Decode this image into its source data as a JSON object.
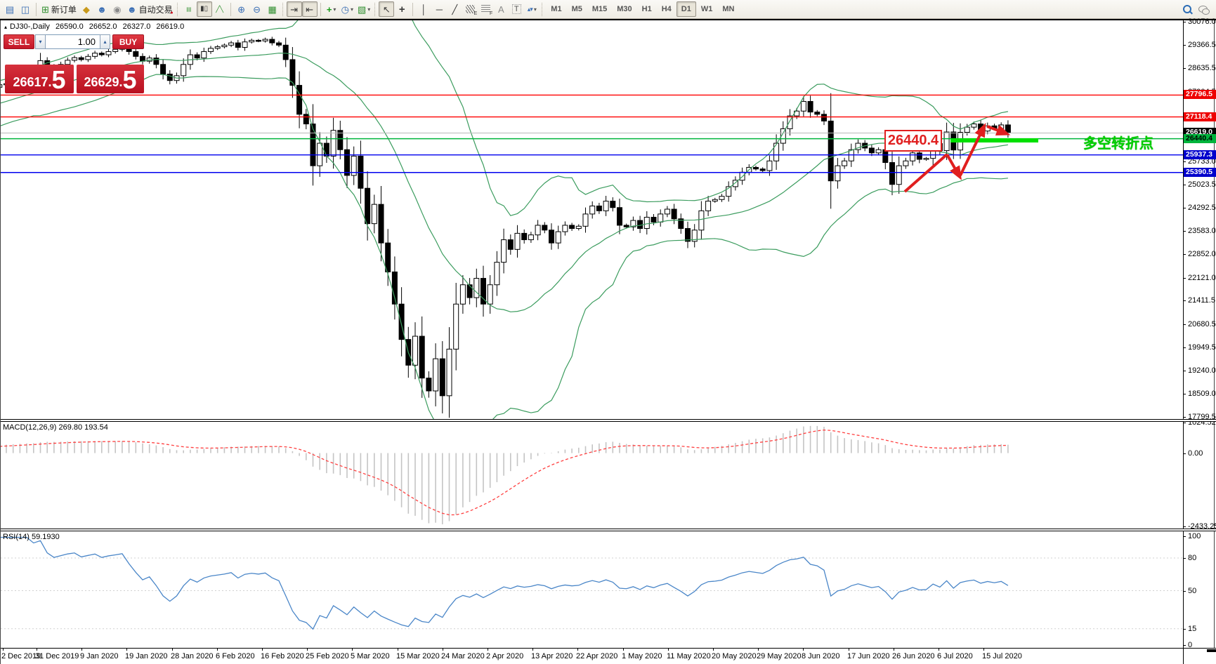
{
  "colors": {
    "up_candle": "#ffffff",
    "down_candle": "#000000",
    "bollinger": "#3b9c5e",
    "macd_hist": "#c4c4c4",
    "macd_signal": "#ff4040",
    "rsi_line": "#4a86c8",
    "level_red": "#ff0000",
    "level_blue": "#0000ee",
    "level_green": "#00b43c",
    "current_price_line": "#b8b8b8",
    "accent_red": "#d01f30",
    "annotation_green": "#00e000"
  },
  "icons": {
    "chart-window": "▤",
    "strategy-tester": "◫",
    "new-order": "⊞",
    "styler": "◆",
    "vps": "☻",
    "news": "◉",
    "autotrading": "☻",
    "autotrading-badge": "●",
    "bar-chart": "≡",
    "candles": "▮▯",
    "line-chart": "╱╲",
    "zoom-in": "⊕",
    "zoom-out": "⊖",
    "tile-windows": "▦",
    "auto-scroll": "⇥",
    "chart-shift": "⇤",
    "indicators": "+",
    "periods": "◷",
    "templates": "▧",
    "cursor": "↖",
    "crosshair": "+",
    "vline": "│",
    "hline": "─",
    "trendline": "╱",
    "channel": "╱╱",
    "text": "A",
    "label": "T",
    "arrows": "▴▾",
    "caret": "▾",
    "caret-down": "▾",
    "caret-up": "▴",
    "tri-up": "▴"
  },
  "toolbar": {
    "new_order_label": "新订单",
    "autotrading_label": "自动交易",
    "timeframes": [
      "M1",
      "M5",
      "M15",
      "M30",
      "H1",
      "H4",
      "D1",
      "W1",
      "MN"
    ],
    "active_timeframe": "D1"
  },
  "title": {
    "symbol": "DJ30-,Daily",
    "open": "26590.0",
    "high": "26652.0",
    "low": "26327.0",
    "close": "26619.0"
  },
  "trade_panel": {
    "sell_label": "SELL",
    "buy_label": "BUY",
    "volume": "1.00",
    "sell_main": "26617.",
    "sell_big": "5",
    "buy_main": "26629.",
    "buy_big": "5"
  },
  "annotations": {
    "price_callout": "26440.4",
    "zone_text": "多空转折点"
  },
  "macd": {
    "label": "MACD(12,26,9) 269.80 193.54",
    "ticks": [
      "1024.52",
      "0.00",
      "-2433.25"
    ]
  },
  "rsi": {
    "label": "RSI(14) 59.1930",
    "ticks": [
      "100",
      "80",
      "50",
      "15",
      "0"
    ],
    "levels": [
      80,
      50,
      15
    ]
  },
  "chart_data": {
    "type": "candlestick",
    "symbol": "DJ30-",
    "timeframe": "Daily",
    "title": "DJ30-,Daily 26590.0 26652.0 26327.0 26619.0",
    "ohlc_display": {
      "open": 26590.0,
      "high": 26652.0,
      "low": 26327.0,
      "close": 26619.0
    },
    "current_price": 26619.0,
    "y_axis_ticks": [
      "30076.0",
      "29366.5",
      "28635.5",
      "27904.5",
      "25733.0",
      "25023.5",
      "24292.5",
      "23583.0",
      "22852.0",
      "22121.0",
      "21411.5",
      "20680.5",
      "19949.5",
      "19240.0",
      "18509.0",
      "17799.5"
    ],
    "x_axis_labels": [
      "2 Dec 2019",
      "31 Dec 2019",
      "9 Jan 2020",
      "19 Jan 2020",
      "28 Jan 2020",
      "6 Feb 2020",
      "16 Feb 2020",
      "25 Feb 2020",
      "5 Mar 2020",
      "15 Mar 2020",
      "24 Mar 2020",
      "2 Apr 2020",
      "13 Apr 2020",
      "22 Apr 2020",
      "1 May 2020",
      "11 May 2020",
      "20 May 2020",
      "29 May 2020",
      "8 Jun 2020",
      "17 Jun 2020",
      "26 Jun 2020",
      "6 Jul 2020",
      "15 Jul 2020"
    ],
    "levels": [
      {
        "text": "27796.5",
        "price": 27796.5,
        "line": "#ff0000",
        "bg": "#ee0000",
        "fg": "#ffffff"
      },
      {
        "text": "27118.4",
        "price": 27118.4,
        "line": "#ff0000",
        "bg": "#ee0000",
        "fg": "#ffffff"
      },
      {
        "text": "26619.0",
        "price": 26619.0,
        "line": "#b8b8b8",
        "bg": "#000000",
        "fg": "#ffffff"
      },
      {
        "text": "26440.4",
        "price": 26440.4,
        "line": "#00b43c",
        "bg": "#00b43c",
        "fg": "#000000"
      },
      {
        "text": "25937.3",
        "price": 25937.3,
        "line": "#0000ee",
        "bg": "#0000cc",
        "fg": "#ffffff"
      },
      {
        "text": "25390.5",
        "price": 25390.5,
        "line": "#0000ee",
        "bg": "#0000cc",
        "fg": "#ffffff"
      }
    ],
    "indicators": {
      "bollinger": {
        "period": 20,
        "deviation": 2
      },
      "macd": {
        "fast": 12,
        "slow": 26,
        "signal": 9,
        "value": 269.8,
        "signal_value": 193.54
      },
      "rsi": {
        "period": 14,
        "value": 59.193
      }
    },
    "closes": [
      26900,
      26980,
      27060,
      27140,
      27210,
      27280,
      27350,
      27420,
      27480,
      27540,
      27600,
      27660,
      27710,
      27760,
      27810,
      27860,
      27910,
      27960,
      28040,
      28120,
      28150,
      28260,
      28380,
      28460,
      28400,
      28868,
      28700,
      28630,
      28750,
      28880,
      28960,
      28900,
      29000,
      29100,
      29050,
      29150,
      29220,
      29300,
      29150,
      29000,
      28850,
      28950,
      28750,
      28450,
      28250,
      28400,
      28750,
      29050,
      28950,
      29150,
      29250,
      29300,
      29350,
      29420,
      29280,
      29450,
      29500,
      29480,
      29530,
      29420,
      29350,
      28900,
      28100,
      27200,
      26900,
      25600,
      26300,
      25900,
      26700,
      26100,
      25300,
      25900,
      24900,
      23800,
      24400,
      23200,
      22300,
      21300,
      20200,
      19400,
      20300,
      19000,
      18600,
      19600,
      18450,
      19900,
      21300,
      21900,
      21500,
      22100,
      21300,
      21900,
      22600,
      23300,
      23000,
      23500,
      23300,
      23450,
      23750,
      23600,
      23200,
      23550,
      23750,
      23650,
      23720,
      24100,
      24350,
      24200,
      24500,
      24300,
      23750,
      23700,
      23900,
      23650,
      24000,
      23850,
      24100,
      24250,
      23950,
      23650,
      23250,
      23600,
      24200,
      24500,
      24550,
      24650,
      24950,
      25150,
      25400,
      25550,
      25500,
      25450,
      25750,
      26300,
      26750,
      27150,
      27300,
      27600,
      27270,
      27200,
      26990,
      25130,
      25600,
      25750,
      26100,
      26300,
      26150,
      26000,
      26100,
      25700,
      25020,
      25600,
      25750,
      26000,
      25800,
      25830,
      26290,
      26070,
      26650,
      26090,
      26640,
      26800,
      26900,
      26680,
      26840,
      26760,
      26870,
      26619
    ]
  }
}
